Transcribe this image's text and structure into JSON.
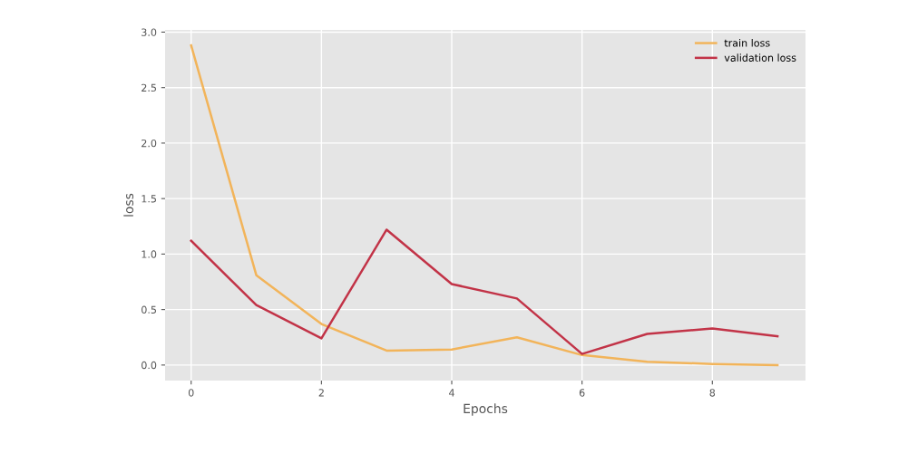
{
  "chart_data": {
    "type": "line",
    "xlabel": "Epochs",
    "ylabel": "loss",
    "x": [
      0,
      1,
      2,
      3,
      4,
      5,
      6,
      7,
      8,
      9
    ],
    "series": [
      {
        "name": "train loss",
        "color": "#f2b45a",
        "values": [
          2.88,
          0.81,
          0.37,
          0.13,
          0.14,
          0.25,
          0.09,
          0.03,
          0.01,
          0.0
        ]
      },
      {
        "name": "validation loss",
        "color": "#c23347",
        "values": [
          1.12,
          0.54,
          0.24,
          1.22,
          0.73,
          0.6,
          0.1,
          0.28,
          0.33,
          0.26
        ]
      }
    ],
    "xlim": [
      -0.4,
      9.43
    ],
    "xticks": [
      0,
      2,
      4,
      6,
      8
    ],
    "ylim": [
      -0.14,
      3.02
    ],
    "yticks": [
      {
        "value": 0,
        "label": "0.0"
      },
      {
        "value": 0.5,
        "label": "0.5"
      },
      {
        "value": 1,
        "label": "1.0"
      },
      {
        "value": 1.5,
        "label": "1.5"
      },
      {
        "value": 2,
        "label": "2.0"
      },
      {
        "value": 2.5,
        "label": "2.5"
      },
      {
        "value": 3,
        "label": "3.0"
      }
    ],
    "grid": true,
    "legend": "top right",
    "marker": "none",
    "line_style": "solid"
  }
}
